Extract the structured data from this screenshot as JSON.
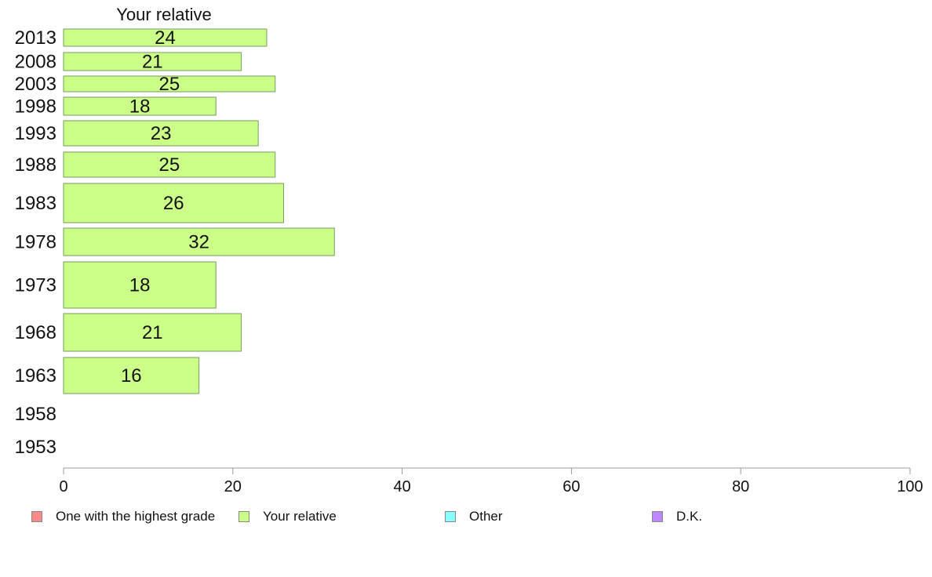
{
  "chart_data": {
    "type": "bar",
    "orientation": "horizontal",
    "title": "Your relative",
    "categories": [
      "2013",
      "2008",
      "2003",
      "1998",
      "1993",
      "1988",
      "1983",
      "1978",
      "1973",
      "1968",
      "1963",
      "1958",
      "1953"
    ],
    "series": [
      {
        "name": "Your relative",
        "color": "#ccff88",
        "values": [
          24,
          21,
          25,
          18,
          23,
          25,
          26,
          32,
          18,
          21,
          16,
          null,
          null
        ]
      }
    ],
    "xlim": [
      0,
      100
    ],
    "xticks": [
      "0",
      "20",
      "40",
      "60",
      "80",
      "100"
    ],
    "grid": false,
    "legend": [
      {
        "label": "One with the highest grade",
        "color": "#ff8888"
      },
      {
        "label": "Your relative",
        "color": "#ccff88"
      },
      {
        "label": "Other",
        "color": "#88ffff"
      },
      {
        "label": "D.K.",
        "color": "#bb88ff"
      }
    ]
  }
}
